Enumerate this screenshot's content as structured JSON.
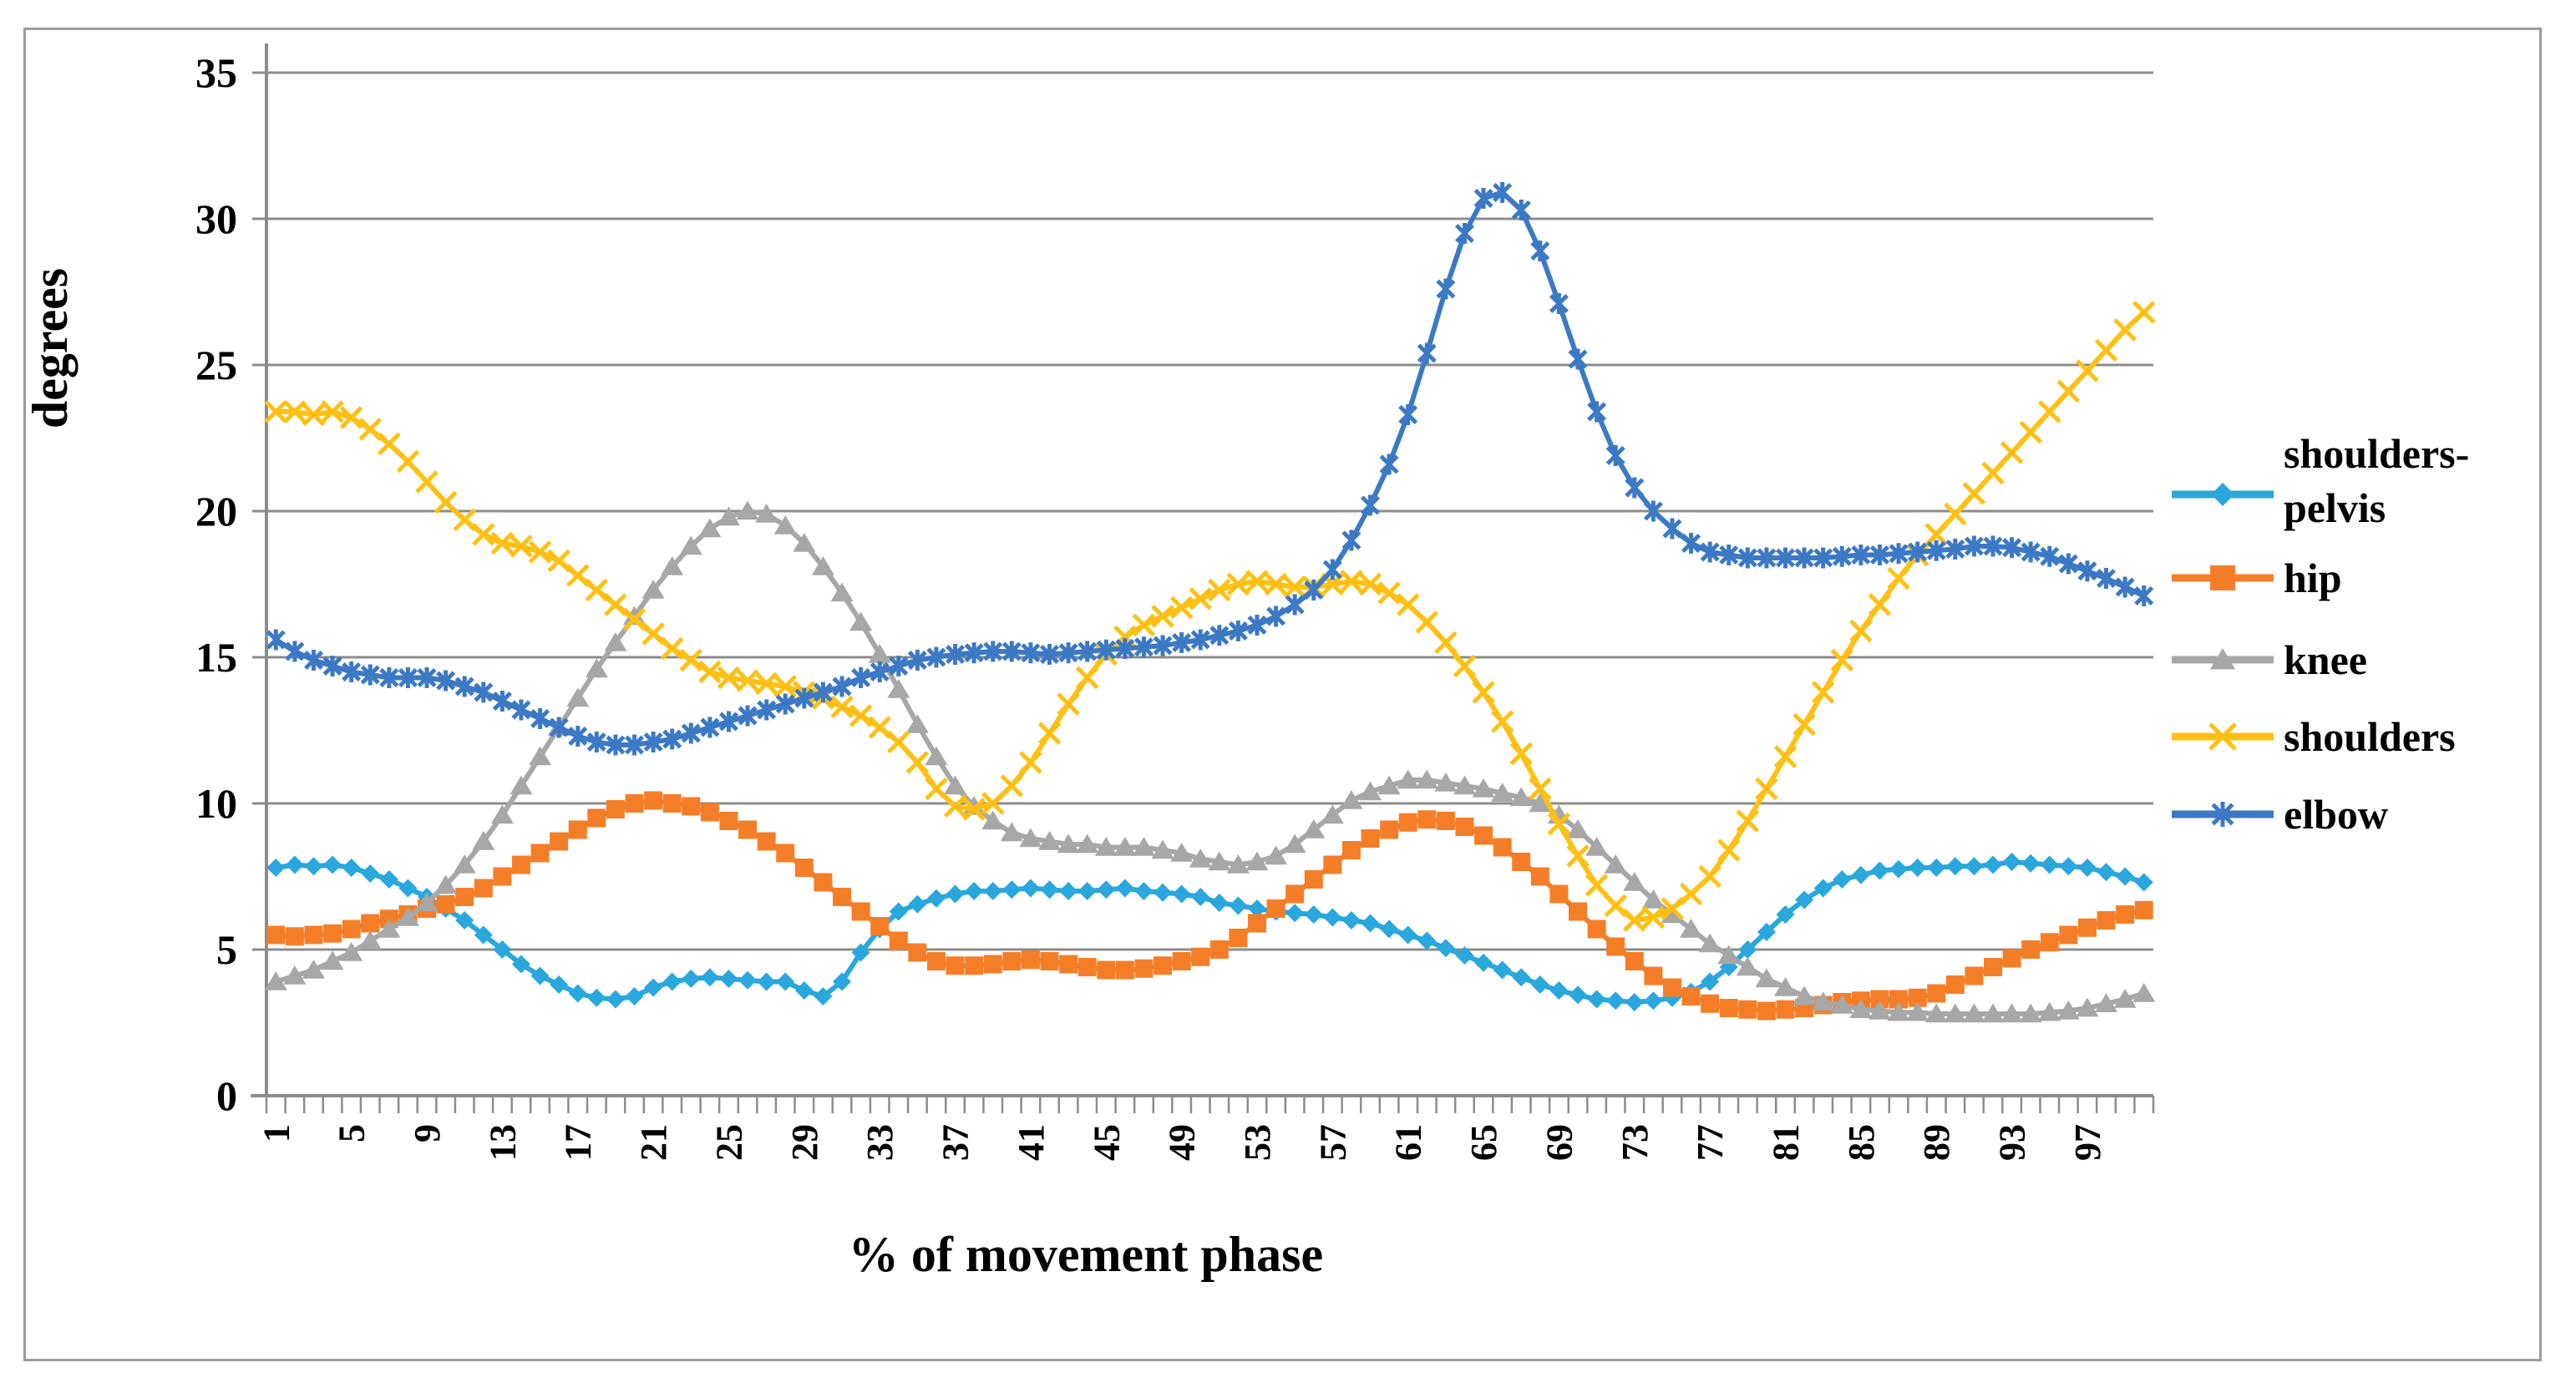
{
  "chart_data": {
    "type": "line",
    "title": "",
    "xlabel": "% of movement phase",
    "ylabel": "degrees",
    "ylim": [
      0,
      35
    ],
    "y_ticks": [
      0,
      5,
      10,
      15,
      20,
      25,
      30,
      35
    ],
    "y_tick_labels": [
      "0",
      "5",
      "10",
      "15",
      "20",
      "25",
      "30",
      "35"
    ],
    "x_range": [
      1,
      100
    ],
    "x_tick_labels": [
      "1",
      "5",
      "9",
      "13",
      "17",
      "21",
      "25",
      "29",
      "33",
      "37",
      "41",
      "45",
      "49",
      "53",
      "57",
      "61",
      "65",
      "69",
      "73",
      "77",
      "81",
      "85",
      "89",
      "93",
      "97"
    ],
    "x_label_step": 4,
    "grid": "horizontal",
    "legend_position": "right",
    "axis_color": "#8c8c8c",
    "text_color": "#000000",
    "series": [
      {
        "name": "shoulders-pelvis",
        "legend_lines": [
          "shoulders-",
          "pelvis"
        ],
        "color": "#2AA7DD",
        "marker": "diamond",
        "values": [
          7.8,
          7.9,
          7.85,
          7.9,
          7.8,
          7.6,
          7.4,
          7.1,
          6.8,
          6.4,
          6.0,
          5.5,
          5.0,
          4.5,
          4.1,
          3.8,
          3.5,
          3.35,
          3.3,
          3.4,
          3.7,
          3.9,
          4.0,
          4.05,
          4.0,
          3.95,
          3.9,
          3.9,
          3.6,
          3.4,
          3.9,
          4.9,
          5.7,
          6.3,
          6.55,
          6.75,
          6.9,
          7.0,
          7.0,
          7.05,
          7.1,
          7.05,
          7.0,
          7.0,
          7.05,
          7.1,
          7.0,
          6.95,
          6.9,
          6.8,
          6.6,
          6.5,
          6.4,
          6.3,
          6.25,
          6.2,
          6.1,
          6.0,
          5.9,
          5.7,
          5.5,
          5.3,
          5.05,
          4.8,
          4.55,
          4.3,
          4.05,
          3.8,
          3.6,
          3.45,
          3.3,
          3.25,
          3.2,
          3.25,
          3.35,
          3.55,
          3.9,
          4.4,
          5.0,
          5.6,
          6.2,
          6.7,
          7.1,
          7.4,
          7.55,
          7.7,
          7.75,
          7.8,
          7.8,
          7.85,
          7.85,
          7.9,
          8.0,
          7.95,
          7.9,
          7.85,
          7.8,
          7.65,
          7.5,
          7.3
        ]
      },
      {
        "name": "hip",
        "legend_lines": [
          "hip"
        ],
        "color": "#F47E28",
        "marker": "square",
        "values": [
          5.5,
          5.45,
          5.5,
          5.55,
          5.7,
          5.9,
          6.05,
          6.2,
          6.4,
          6.55,
          6.8,
          7.1,
          7.5,
          7.9,
          8.3,
          8.7,
          9.1,
          9.5,
          9.8,
          10.0,
          10.1,
          10.0,
          9.9,
          9.7,
          9.4,
          9.1,
          8.7,
          8.3,
          7.8,
          7.3,
          6.8,
          6.3,
          5.8,
          5.3,
          4.9,
          4.6,
          4.45,
          4.45,
          4.5,
          4.6,
          4.65,
          4.6,
          4.5,
          4.4,
          4.3,
          4.3,
          4.35,
          4.45,
          4.6,
          4.75,
          5.0,
          5.4,
          5.9,
          6.4,
          6.9,
          7.4,
          7.9,
          8.4,
          8.8,
          9.1,
          9.35,
          9.45,
          9.4,
          9.2,
          8.9,
          8.5,
          8.0,
          7.5,
          6.9,
          6.3,
          5.7,
          5.1,
          4.6,
          4.1,
          3.7,
          3.4,
          3.15,
          3.0,
          2.95,
          2.9,
          2.95,
          3.0,
          3.1,
          3.2,
          3.25,
          3.3,
          3.3,
          3.35,
          3.5,
          3.8,
          4.1,
          4.4,
          4.7,
          5.0,
          5.25,
          5.5,
          5.75,
          6.0,
          6.2,
          6.35
        ]
      },
      {
        "name": "knee",
        "legend_lines": [
          "knee"
        ],
        "color": "#A7A7A7",
        "marker": "triangle",
        "values": [
          3.9,
          4.1,
          4.3,
          4.6,
          4.9,
          5.3,
          5.7,
          6.1,
          6.6,
          7.2,
          7.9,
          8.7,
          9.6,
          10.6,
          11.6,
          12.6,
          13.6,
          14.6,
          15.5,
          16.4,
          17.3,
          18.1,
          18.8,
          19.4,
          19.8,
          20.0,
          19.9,
          19.5,
          18.9,
          18.1,
          17.2,
          16.2,
          15.1,
          13.9,
          12.7,
          11.6,
          10.6,
          9.9,
          9.4,
          9.0,
          8.8,
          8.7,
          8.6,
          8.6,
          8.5,
          8.5,
          8.5,
          8.4,
          8.3,
          8.1,
          8.0,
          7.9,
          8.0,
          8.2,
          8.6,
          9.1,
          9.6,
          10.1,
          10.4,
          10.6,
          10.8,
          10.8,
          10.7,
          10.6,
          10.5,
          10.35,
          10.2,
          10.0,
          9.6,
          9.1,
          8.5,
          7.9,
          7.3,
          6.7,
          6.2,
          5.7,
          5.2,
          4.8,
          4.4,
          4.0,
          3.7,
          3.4,
          3.2,
          3.1,
          2.95,
          2.9,
          2.85,
          2.85,
          2.8,
          2.8,
          2.8,
          2.8,
          2.8,
          2.8,
          2.85,
          2.9,
          3.0,
          3.15,
          3.3,
          3.5
        ]
      },
      {
        "name": "shoulders",
        "legend_lines": [
          "shoulders"
        ],
        "color": "#FFC013",
        "marker": "x",
        "values": [
          23.4,
          23.4,
          23.3,
          23.4,
          23.2,
          22.8,
          22.3,
          21.7,
          21.0,
          20.3,
          19.7,
          19.2,
          18.9,
          18.8,
          18.6,
          18.3,
          17.8,
          17.3,
          16.8,
          16.3,
          15.8,
          15.3,
          14.9,
          14.5,
          14.3,
          14.2,
          14.1,
          14.0,
          13.8,
          13.6,
          13.3,
          13.0,
          12.6,
          12.1,
          11.4,
          10.5,
          9.9,
          9.8,
          10.0,
          10.6,
          11.4,
          12.4,
          13.4,
          14.3,
          15.1,
          15.7,
          16.1,
          16.4,
          16.7,
          17.0,
          17.3,
          17.5,
          17.6,
          17.5,
          17.4,
          17.4,
          17.5,
          17.6,
          17.5,
          17.2,
          16.8,
          16.2,
          15.5,
          14.7,
          13.8,
          12.8,
          11.7,
          10.5,
          9.3,
          8.2,
          7.2,
          6.5,
          6.0,
          6.1,
          6.4,
          6.9,
          7.5,
          8.4,
          9.4,
          10.5,
          11.6,
          12.7,
          13.8,
          14.9,
          15.9,
          16.8,
          17.7,
          18.5,
          19.2,
          19.9,
          20.6,
          21.3,
          22.0,
          22.7,
          23.4,
          24.1,
          24.8,
          25.5,
          26.2,
          26.8
        ]
      },
      {
        "name": "elbow",
        "legend_lines": [
          "elbow"
        ],
        "color": "#3C79C5",
        "marker": "asterisk",
        "values": [
          15.6,
          15.2,
          14.9,
          14.7,
          14.5,
          14.4,
          14.3,
          14.3,
          14.3,
          14.2,
          14.0,
          13.8,
          13.5,
          13.2,
          12.9,
          12.6,
          12.3,
          12.1,
          12.0,
          12.0,
          12.1,
          12.2,
          12.4,
          12.6,
          12.8,
          13.0,
          13.2,
          13.4,
          13.6,
          13.8,
          14.0,
          14.3,
          14.5,
          14.7,
          14.9,
          15.0,
          15.1,
          15.15,
          15.2,
          15.2,
          15.15,
          15.1,
          15.15,
          15.2,
          15.25,
          15.3,
          15.35,
          15.4,
          15.5,
          15.6,
          15.75,
          15.9,
          16.1,
          16.4,
          16.8,
          17.3,
          18.0,
          19.0,
          20.2,
          21.6,
          23.3,
          25.4,
          27.6,
          29.5,
          30.7,
          30.9,
          30.3,
          28.9,
          27.1,
          25.2,
          23.4,
          21.9,
          20.8,
          20.0,
          19.4,
          18.9,
          18.6,
          18.5,
          18.4,
          18.4,
          18.4,
          18.4,
          18.4,
          18.45,
          18.5,
          18.5,
          18.55,
          18.6,
          18.65,
          18.7,
          18.8,
          18.8,
          18.75,
          18.6,
          18.45,
          18.2,
          17.95,
          17.7,
          17.4,
          17.1
        ]
      }
    ]
  }
}
